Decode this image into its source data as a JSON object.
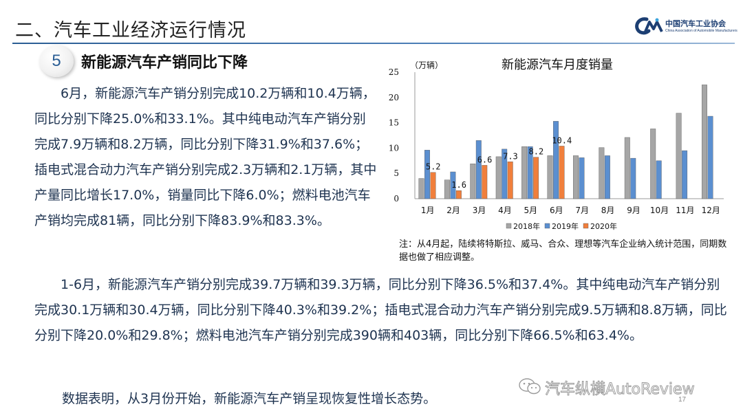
{
  "header": {
    "title": "二、汽车工业经济运行情况",
    "logo_cn": "中国汽车工业协会",
    "logo_en": "China Association of Automobile Manufacturers"
  },
  "section": {
    "number": "5",
    "title": "新能源汽车产销同比下降"
  },
  "paragraphs": {
    "p1": "　　6月，新能源汽车产销分别完成10.2万辆和10.4万辆，同比分别下降25.0%和33.1%。其中纯电动汽车产销分别完成7.9万辆和8.2万辆，同比分别下降31.9%和37.6%；插电式混合动力汽车产销分别完成2.3万辆和2.1万辆，其中产量同比增长17.0%，销量同比下降6.0%；燃料电池汽车产销均完成81辆，同比分别下降83.9%和83.3%。",
    "p2": "　　1-6月，新能源汽车产销分别完成39.7万辆和39.3万辆，同比分别下降36.5%和37.4%。其中纯电动汽车产销分别完成30.1万辆和30.4万辆，同比分别下降40.3%和39.2%；插电式混合动力汽车产销分别完成9.5万辆和8.8万辆，同比分别下降20.0%和29.8%；燃料电池汽车产销分别完成390辆和403辆，同比分别下降66.5%和63.4%。",
    "p3": "数据表明，从3月份开始，新能源汽车产销呈现恢复性增长态势。"
  },
  "chart_note": "注：从4月起，陆续将特斯拉、威马、合众、理想等汽车企业纳入统计范围，同期数据也做了相应调整。",
  "watermark": "汽车纵横AutoReview",
  "page_number": "17",
  "colors": {
    "s2018": "#a6a6a6",
    "s2019": "#5b8fd0",
    "s2020": "#f07f3c",
    "text": "#1e3350"
  },
  "chart_data": {
    "type": "bar",
    "title": "新能源汽车月度销量",
    "ylabel": "（万辆）",
    "categories": [
      "1月",
      "2月",
      "3月",
      "4月",
      "5月",
      "6月",
      "7月",
      "8月",
      "9月",
      "10月",
      "11月",
      "12月"
    ],
    "ylim": [
      0,
      25
    ],
    "yticks": [
      "0",
      "5",
      "10",
      "15",
      "20",
      "25"
    ],
    "grid": false,
    "legend_position": "bottom",
    "series": [
      {
        "name": "2018年",
        "values": [
          4.0,
          3.7,
          6.9,
          8.3,
          10.3,
          8.5,
          8.5,
          10.1,
          12.1,
          13.8,
          16.9,
          22.5
        ]
      },
      {
        "name": "2019年",
        "values": [
          9.6,
          5.3,
          11.5,
          9.8,
          10.3,
          15.3,
          8.1,
          8.5,
          8.0,
          7.5,
          9.5,
          16.3
        ]
      },
      {
        "name": "2020年",
        "values": [
          5.2,
          1.6,
          6.6,
          7.3,
          8.2,
          10.4,
          null,
          null,
          null,
          null,
          null,
          null
        ]
      }
    ],
    "data_labels": [
      "5.2",
      "1.6",
      "6.6",
      "7.3",
      "8.2",
      "10.4"
    ]
  }
}
